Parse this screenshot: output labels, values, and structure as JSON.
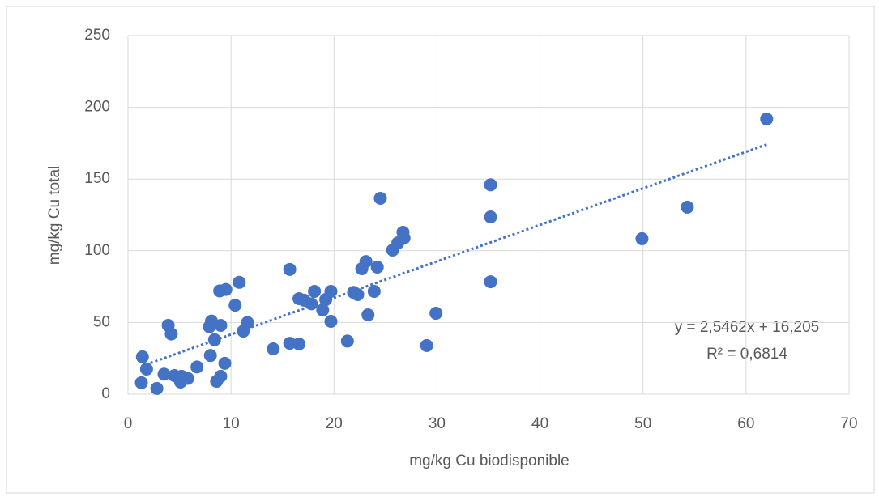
{
  "chart_data": {
    "type": "scatter",
    "x_label": "mg/kg Cu biodisponible",
    "y_label": "mg/kg Cu total",
    "color": "#4472c4",
    "grid": true,
    "xlim": [
      0,
      70
    ],
    "xticks": [
      0,
      10,
      20,
      30,
      40,
      50,
      60,
      70
    ],
    "ylim": [
      0,
      250
    ],
    "yticks": [
      0,
      50,
      100,
      150,
      200,
      250
    ],
    "x": [
      1.4,
      1.8,
      1.3,
      2.8,
      3.5,
      3.9,
      4.2,
      4.5,
      5.1,
      5.2,
      5.8,
      6.7,
      7.9,
      8.1,
      8.0,
      8.4,
      8.6,
      9.0,
      9.0,
      8.9,
      9.5,
      9.4,
      10.4,
      10.8,
      11.2,
      11.6,
      14.1,
      15.7,
      15.7,
      16.6,
      16.6,
      17.1,
      17.8,
      18.1,
      18.9,
      19.2,
      19.7,
      19.7,
      21.3,
      21.9,
      22.3,
      22.7,
      23.1,
      23.3,
      23.9,
      24.2,
      24.5,
      25.7,
      26.2,
      26.7,
      26.8,
      29.0,
      29.9,
      35.2,
      35.2,
      35.2,
      49.9,
      54.3,
      62.0
    ],
    "values": [
      26,
      17.5,
      8,
      4,
      14,
      48,
      42,
      13,
      8.5,
      12.5,
      11,
      19,
      47,
      51,
      27,
      38,
      9,
      12.5,
      48,
      72,
      73,
      21.5,
      62,
      78,
      44,
      50,
      31.6,
      87,
      35.5,
      35,
      66.6,
      65.5,
      63,
      71.7,
      58.7,
      66,
      71.7,
      50.8,
      37,
      71,
      69.4,
      87.5,
      92.5,
      55.3,
      71.7,
      88.6,
      136.6,
      100.5,
      105.5,
      112.9,
      108.9,
      33.9,
      56.4,
      146,
      123.6,
      78.4,
      108.4,
      130.4,
      191.9
    ],
    "trendline": {
      "slope": 2.5462,
      "intercept": 16.205,
      "equation": "y = 2,5462x + 16,205",
      "r2_label": "R² = 0,6814"
    }
  }
}
